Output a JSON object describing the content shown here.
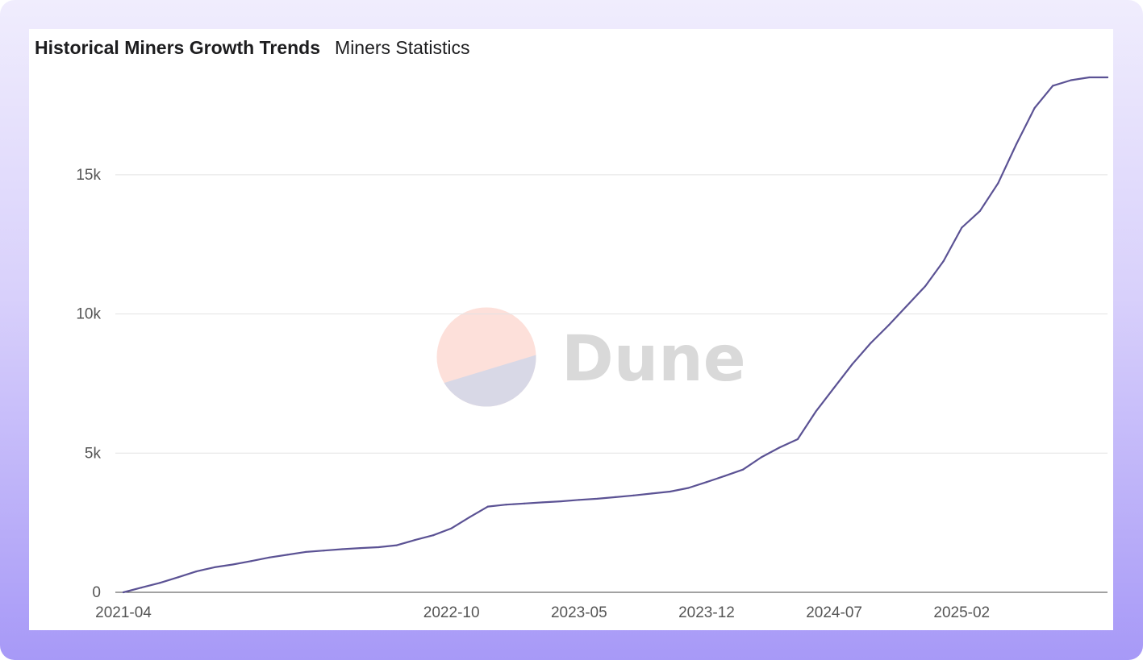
{
  "header": {
    "title": "Historical Miners Growth Trends",
    "subtitle": "Miners Statistics"
  },
  "watermark": {
    "text": "Dune",
    "colors": {
      "top": "#fde0da",
      "bottom": "#d8d8e6"
    }
  },
  "colors": {
    "line": "#5b5294",
    "grid": "#e3e3e3",
    "axis": "#444444"
  },
  "chart_data": {
    "type": "line",
    "title": "Historical Miners Growth Trends",
    "subtitle": "Miners Statistics",
    "xlabel": "",
    "ylabel": "",
    "grid": true,
    "xlim": [
      "2021-04",
      "2025-10"
    ],
    "ylim": [
      0,
      18500
    ],
    "x_ticks": [
      "2021-04",
      "2022-10",
      "2023-05",
      "2023-12",
      "2024-07",
      "2025-02"
    ],
    "y_ticks": [
      {
        "value": 0,
        "label": "0"
      },
      {
        "value": 5000,
        "label": "5k"
      },
      {
        "value": 10000,
        "label": "10k"
      },
      {
        "value": 15000,
        "label": "15k"
      }
    ],
    "series": [
      {
        "name": "",
        "x": [
          "2021-04",
          "2021-05",
          "2021-06",
          "2021-07",
          "2021-08",
          "2021-09",
          "2021-10",
          "2021-11",
          "2021-12",
          "2022-01",
          "2022-02",
          "2022-03",
          "2022-04",
          "2022-05",
          "2022-06",
          "2022-07",
          "2022-08",
          "2022-09",
          "2022-10",
          "2022-11",
          "2022-12",
          "2023-01",
          "2023-02",
          "2023-03",
          "2023-04",
          "2023-05",
          "2023-06",
          "2023-07",
          "2023-08",
          "2023-09",
          "2023-10",
          "2023-11",
          "2023-12",
          "2024-01",
          "2024-02",
          "2024-03",
          "2024-04",
          "2024-05",
          "2024-06",
          "2024-07",
          "2024-08",
          "2024-09",
          "2024-10",
          "2024-11",
          "2024-12",
          "2025-01",
          "2025-02",
          "2025-03",
          "2025-04",
          "2025-05",
          "2025-06",
          "2025-07",
          "2025-08",
          "2025-09",
          "2025-10"
        ],
        "values": [
          0,
          170,
          340,
          540,
          750,
          900,
          1000,
          1120,
          1250,
          1350,
          1450,
          1500,
          1550,
          1590,
          1620,
          1690,
          1880,
          2050,
          2300,
          2700,
          3080,
          3150,
          3190,
          3230,
          3270,
          3320,
          3360,
          3420,
          3480,
          3550,
          3620,
          3750,
          3960,
          4180,
          4410,
          4850,
          5200,
          5500,
          6500,
          7350,
          8200,
          8950,
          9600,
          10300,
          11000,
          11900,
          13100,
          13700,
          14700,
          16100,
          17400,
          18200,
          18400,
          18500,
          18500
        ]
      }
    ]
  }
}
